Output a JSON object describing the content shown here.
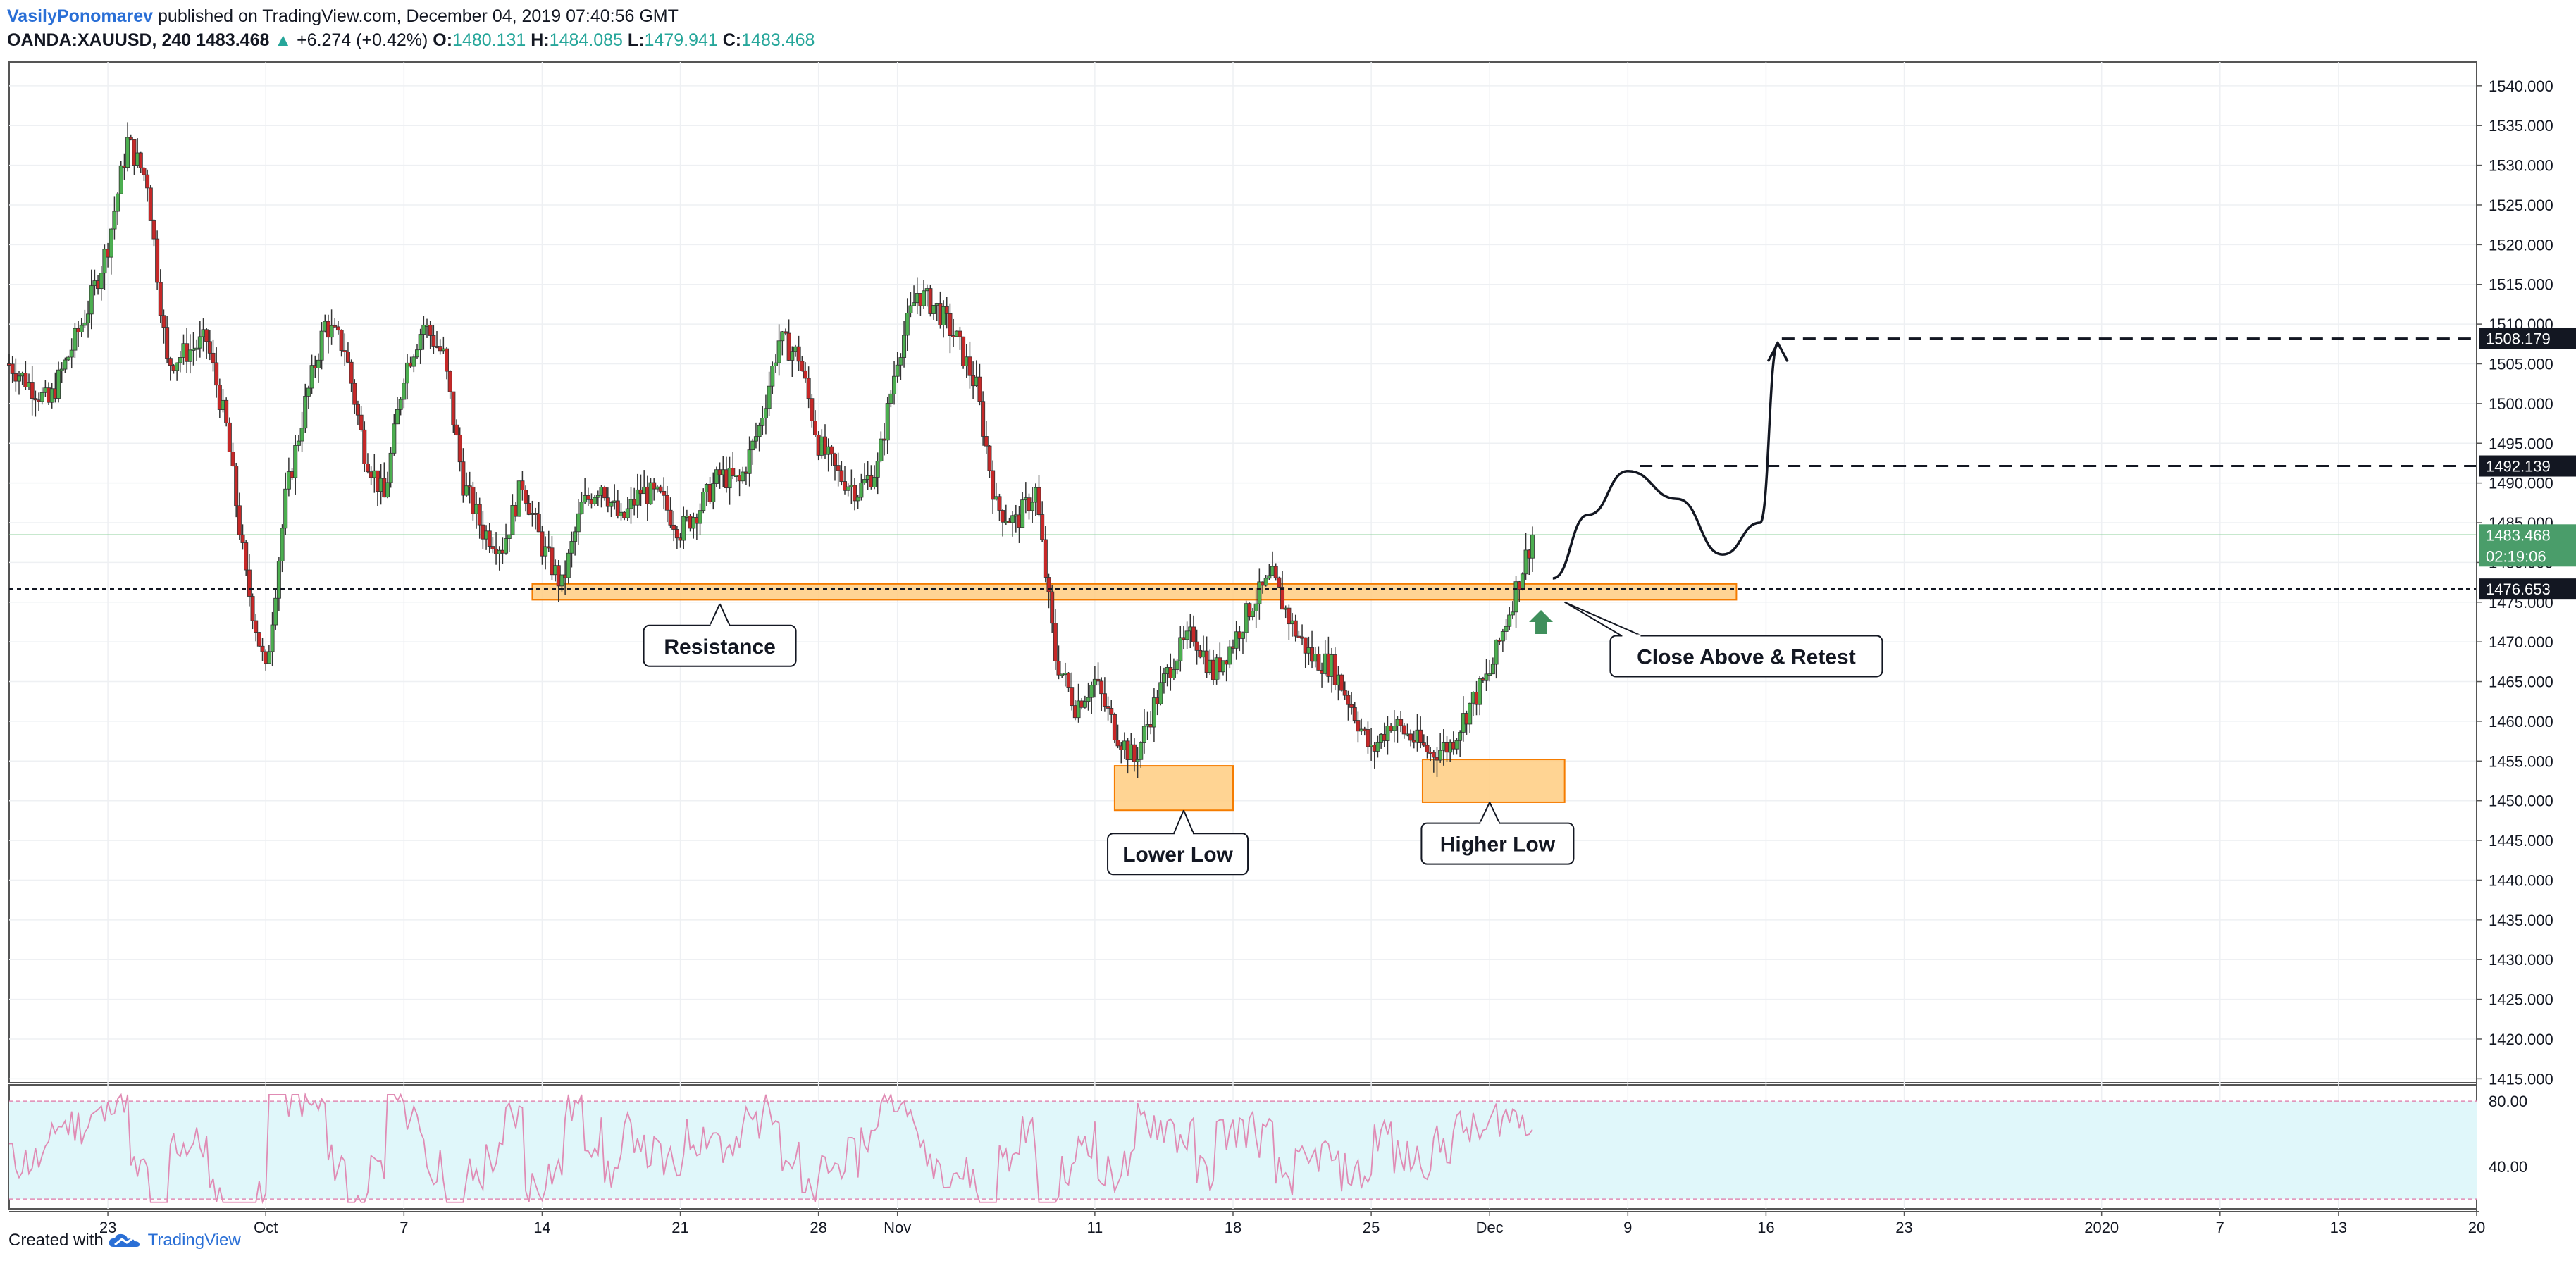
{
  "header": {
    "author": "VasilyPonomarev",
    "published": "published on TradingView.com, December 04, 2019 07:40:56 GMT",
    "symbol": "OANDA:XAUUSD, 240",
    "last": "1483.468",
    "change_arrow": "▲",
    "change": "+6.274 (+0.42%)",
    "o_label": "O:",
    "o_value": "1480.131",
    "h_label": "H:",
    "h_value": "1484.085",
    "l_label": "L:",
    "l_value": "1479.941",
    "c_label": "C:",
    "c_value": "1483.468"
  },
  "footer": {
    "created_with": "Created with",
    "brand": "TradingView",
    "brand_icon": "cloud-logo-icon"
  },
  "colors": {
    "bull": "#4caf50",
    "bear": "#c62828",
    "zone": "#ffcc80",
    "zone_border": "#f57c00",
    "rsi": "#e08bb4",
    "rsi_band": "#e0f7fa",
    "arrow": "#3f8f5c"
  },
  "chart_data": {
    "type": "candlestick",
    "title": "",
    "y_ticks": [
      "1540.000",
      "1535.000",
      "1530.000",
      "1525.000",
      "1520.000",
      "1515.000",
      "1510.000",
      "1505.000",
      "1500.000",
      "1495.000",
      "1490.000",
      "1485.000",
      "1480.000",
      "1475.000",
      "1470.000",
      "1465.000",
      "1460.000",
      "1455.000",
      "1450.000",
      "1445.000",
      "1440.000",
      "1435.000",
      "1430.000",
      "1425.000",
      "1420.000",
      "1415.000"
    ],
    "ylim": [
      1414.5,
      1543
    ],
    "x_ticks": [
      {
        "label": "23",
        "day": 23
      },
      {
        "label": "Oct",
        "day": 31
      },
      {
        "label": "7",
        "day": 38
      },
      {
        "label": "14",
        "day": 45
      },
      {
        "label": "21",
        "day": 52
      },
      {
        "label": "28",
        "day": 59
      },
      {
        "label": "Nov",
        "day": 63
      },
      {
        "label": "11",
        "day": 73
      },
      {
        "label": "18",
        "day": 80
      },
      {
        "label": "25",
        "day": 87
      },
      {
        "label": "Dec",
        "day": 93
      },
      {
        "label": "9",
        "day": 100
      },
      {
        "label": "16",
        "day": 107
      },
      {
        "label": "23",
        "day": 114
      },
      {
        "label": "2020",
        "day": 124
      },
      {
        "label": "7",
        "day": 130
      },
      {
        "label": "13",
        "day": 136
      },
      {
        "label": "20",
        "day": 143
      }
    ],
    "xlim": [
      18,
      143
    ],
    "price_path": [
      [
        18,
        1505
      ],
      [
        20,
        1500
      ],
      [
        22,
        1512
      ],
      [
        23,
        1520
      ],
      [
        24,
        1533
      ],
      [
        25,
        1528
      ],
      [
        26,
        1505
      ],
      [
        28,
        1508
      ],
      [
        29,
        1497
      ],
      [
        30,
        1478
      ],
      [
        31,
        1466
      ],
      [
        32,
        1488
      ],
      [
        33,
        1500
      ],
      [
        34,
        1510
      ],
      [
        35,
        1507
      ],
      [
        36,
        1494
      ],
      [
        37,
        1488
      ],
      [
        38,
        1504
      ],
      [
        39,
        1510
      ],
      [
        40,
        1506
      ],
      [
        41,
        1490
      ],
      [
        42,
        1484
      ],
      [
        43,
        1482
      ],
      [
        44,
        1490
      ],
      [
        45,
        1482
      ],
      [
        46,
        1477
      ],
      [
        47,
        1487
      ],
      [
        48,
        1490
      ],
      [
        49,
        1485
      ],
      [
        50,
        1489
      ],
      [
        51,
        1488
      ],
      [
        52,
        1484
      ],
      [
        53,
        1487
      ],
      [
        54,
        1491
      ],
      [
        55,
        1490
      ],
      [
        56,
        1497
      ],
      [
        57,
        1508
      ],
      [
        58,
        1506
      ],
      [
        59,
        1495
      ],
      [
        60,
        1491
      ],
      [
        61,
        1489
      ],
      [
        62,
        1492
      ],
      [
        63,
        1506
      ],
      [
        64,
        1514
      ],
      [
        65,
        1512
      ],
      [
        66,
        1508
      ],
      [
        67,
        1502
      ],
      [
        68,
        1487
      ],
      [
        69,
        1485
      ],
      [
        70,
        1489
      ],
      [
        71,
        1468
      ],
      [
        72,
        1462
      ],
      [
        73,
        1465
      ],
      [
        74,
        1459
      ],
      [
        75,
        1455
      ],
      [
        76,
        1462
      ],
      [
        77,
        1468
      ],
      [
        78,
        1471
      ],
      [
        79,
        1466
      ],
      [
        80,
        1470
      ],
      [
        81,
        1475
      ],
      [
        82,
        1478
      ],
      [
        83,
        1472
      ],
      [
        84,
        1468
      ],
      [
        85,
        1467
      ],
      [
        86,
        1462
      ],
      [
        87,
        1456
      ],
      [
        88,
        1460
      ],
      [
        89,
        1458
      ],
      [
        90,
        1456
      ],
      [
        91,
        1457
      ],
      [
        92,
        1462
      ],
      [
        93,
        1466
      ],
      [
        94,
        1474
      ],
      [
        95,
        1482
      ],
      [
        95.3,
        1483.468
      ]
    ],
    "last_price": "1483.468",
    "countdown": "02:19:06",
    "levels": [
      {
        "value": 1508.179,
        "label": "1508.179",
        "style": "dashed"
      },
      {
        "value": 1492.139,
        "label": "1492.139",
        "style": "dashed"
      },
      {
        "value": 1476.653,
        "label": "1476.653",
        "style": "dotted"
      }
    ],
    "zones": [
      {
        "name": "resistance-zone",
        "x0": 44.5,
        "x1": 105.5,
        "y0": 1475.3,
        "y1": 1477.3
      },
      {
        "name": "lower-low-zone",
        "x0": 74,
        "x1": 80,
        "y0": 1448.8,
        "y1": 1454.4
      },
      {
        "name": "higher-low-zone",
        "x0": 89.6,
        "x1": 96.8,
        "y0": 1449.8,
        "y1": 1455.2
      }
    ],
    "annotations": [
      {
        "text": "Resistance",
        "day": 54,
        "price": 1469.5,
        "pointer_day": 54,
        "pointer_price": 1474.8
      },
      {
        "text": "Lower Low",
        "day": 77.2,
        "price": 1443.3,
        "pointer_day": 77.5,
        "pointer_price": 1448.8
      },
      {
        "text": "Higher Low",
        "day": 93.4,
        "price": 1444.6,
        "pointer_day": 93,
        "pointer_price": 1449.8
      },
      {
        "text": "Close Above & Retest",
        "day": 106,
        "price": 1468.2,
        "pointer_day": 96.8,
        "pointer_price": 1475
      }
    ],
    "projection_path": [
      [
        96.2,
        1478
      ],
      [
        98,
        1486
      ],
      [
        100,
        1491.5
      ],
      [
        102.5,
        1488
      ],
      [
        104.8,
        1481
      ],
      [
        106.7,
        1485
      ],
      [
        107.6,
        1507.6
      ]
    ],
    "rsi": {
      "levels": [
        "80.00",
        "40.00"
      ],
      "upper_band": 80,
      "lower_band": 20,
      "ylim": [
        14,
        90
      ]
    }
  }
}
